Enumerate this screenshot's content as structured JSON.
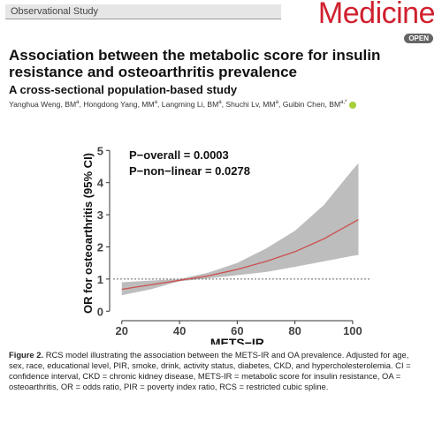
{
  "header": {
    "section": "Observational Study",
    "journal": "Medicine",
    "badge": "OPEN"
  },
  "title": "Association between the metabolic score for insulin resistance and osteoarthritis prevalence",
  "subtitle": "A cross-sectional population-based study",
  "authors": [
    {
      "name": "Yanghua Weng, BM",
      "sup": "a"
    },
    {
      "name": ", Hongdong Yang, MM",
      "sup": "a"
    },
    {
      "name": ", Langming Li, BM",
      "sup": "a"
    },
    {
      "name": ", Shuchi Lv, MM",
      "sup": "a"
    },
    {
      "name": ", Guibin Chen, BM",
      "sup": "a,*"
    }
  ],
  "chart_data": {
    "type": "line",
    "x_label": "METS−IR",
    "y_label": "OR for osteoarthritis (95% CI)",
    "annotations": [
      "P−overall = 0.0003",
      "P−non−linear = 0.0278"
    ],
    "x": [
      20,
      30,
      40,
      50,
      60,
      70,
      80,
      90,
      100,
      102
    ],
    "values": [
      0.68,
      0.82,
      0.96,
      1.1,
      1.3,
      1.55,
      1.85,
      2.25,
      2.75,
      2.85
    ],
    "ci_lower": [
      0.5,
      0.68,
      0.93,
      1.02,
      1.12,
      1.22,
      1.38,
      1.55,
      1.72,
      1.75
    ],
    "ci_upper": [
      0.9,
      0.95,
      1.0,
      1.2,
      1.5,
      1.95,
      2.5,
      3.3,
      4.4,
      4.6
    ],
    "color": "#cd4f4f",
    "band_color": "#bdbdbd",
    "reference_line": 1,
    "xlim": [
      17,
      104
    ],
    "ylim": [
      -0.35,
      5.2
    ],
    "xticks": [
      20,
      40,
      60,
      80,
      100
    ],
    "yticks": [
      0,
      1,
      2,
      3,
      4,
      5
    ]
  },
  "caption": {
    "label": "Figure 2.",
    "text": "RCS model illustrating the association between the METS-IR and OA prevalence. Adjusted for age, sex, race, educational level, PIR, smoke, drink, activity status, diabetes, CKD, and hypercholesterolemia. CI = confidence interval, CKD = chronic kidney disease, METS-IR = metabolic score for insulin resistance, OA = osteoarthritis, OR = odds ratio, PIR = poverty index ratio, RCS = restricted cubic spline."
  }
}
